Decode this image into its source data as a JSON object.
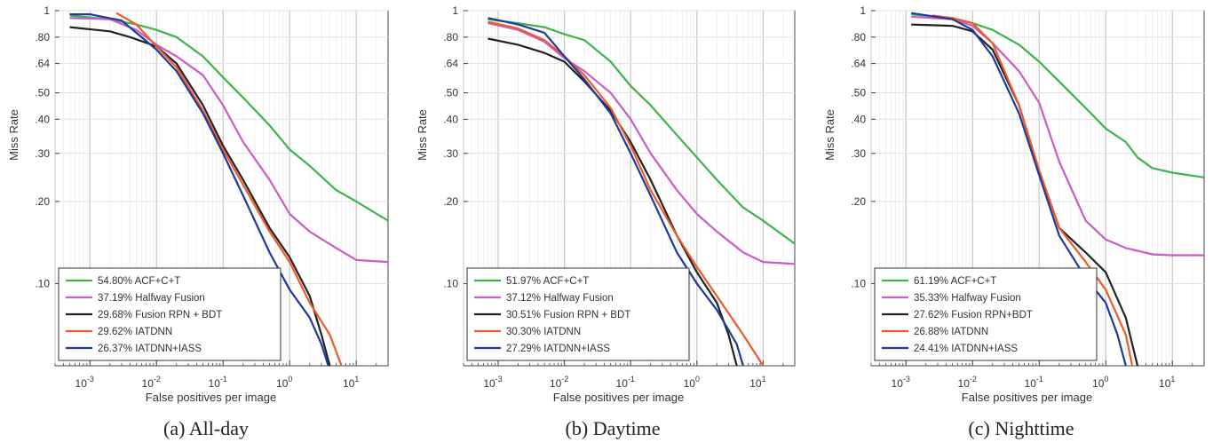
{
  "chart_data": [
    {
      "type": "line",
      "caption": "(a) All-day",
      "xlabel": "False positives per image",
      "ylabel": "Miss Rate",
      "x_scale": "log",
      "y_scale": "log",
      "xlim": [
        0.0003,
        30
      ],
      "ylim": [
        0.05,
        1
      ],
      "x_ticks": [
        {
          "v": 0.001,
          "b": "10",
          "e": "-3"
        },
        {
          "v": 0.01,
          "b": "10",
          "e": "-2"
        },
        {
          "v": 0.1,
          "b": "10",
          "e": "-1"
        },
        {
          "v": 1,
          "b": "10",
          "e": "0"
        },
        {
          "v": 10,
          "b": "10",
          "e": "1"
        }
      ],
      "y_ticks": [
        {
          "v": 1,
          "label": "1"
        },
        {
          "v": 0.8,
          "label": ".80"
        },
        {
          "v": 0.64,
          "label": ".64"
        },
        {
          "v": 0.5,
          "label": ".50"
        },
        {
          "v": 0.4,
          "label": ".40"
        },
        {
          "v": 0.3,
          "label": ".30"
        },
        {
          "v": 0.2,
          "label": ".20"
        },
        {
          "v": 0.1,
          "label": ".10"
        }
      ],
      "grid": true,
      "legend_position": "bottom-left",
      "series": [
        {
          "name": "54.80% ACF+C+T",
          "color": "#3cb44b",
          "points": [
            [
              0.0005,
              0.96
            ],
            [
              0.002,
              0.93
            ],
            [
              0.005,
              0.89
            ],
            [
              0.01,
              0.85
            ],
            [
              0.02,
              0.8
            ],
            [
              0.05,
              0.68
            ],
            [
              0.1,
              0.57
            ],
            [
              0.2,
              0.48
            ],
            [
              0.5,
              0.38
            ],
            [
              1,
              0.31
            ],
            [
              2,
              0.27
            ],
            [
              5,
              0.22
            ],
            [
              10,
              0.2
            ],
            [
              30,
              0.17
            ]
          ]
        },
        {
          "name": "37.19% Halfway Fusion",
          "color": "#cc5ac8",
          "points": [
            [
              0.0005,
              0.94
            ],
            [
              0.002,
              0.93
            ],
            [
              0.005,
              0.85
            ],
            [
              0.01,
              0.75
            ],
            [
              0.02,
              0.68
            ],
            [
              0.05,
              0.58
            ],
            [
              0.1,
              0.45
            ],
            [
              0.2,
              0.33
            ],
            [
              0.5,
              0.24
            ],
            [
              1,
              0.18
            ],
            [
              2,
              0.155
            ],
            [
              5,
              0.135
            ],
            [
              10,
              0.122
            ],
            [
              30,
              0.12
            ]
          ]
        },
        {
          "name": "29.68% Fusion RPN + BDT",
          "color": "#222222",
          "points": [
            [
              0.0005,
              0.87
            ],
            [
              0.002,
              0.84
            ],
            [
              0.004,
              0.8
            ],
            [
              0.01,
              0.74
            ],
            [
              0.02,
              0.64
            ],
            [
              0.05,
              0.45
            ],
            [
              0.1,
              0.32
            ],
            [
              0.2,
              0.24
            ],
            [
              0.5,
              0.16
            ],
            [
              1,
              0.125
            ],
            [
              2,
              0.09
            ],
            [
              3,
              0.065
            ],
            [
              4,
              0.05
            ]
          ]
        },
        {
          "name": "29.62% IATDNN",
          "color": "#f05a28",
          "points": [
            [
              0.0025,
              0.98
            ],
            [
              0.005,
              0.89
            ],
            [
              0.01,
              0.74
            ],
            [
              0.02,
              0.62
            ],
            [
              0.05,
              0.43
            ],
            [
              0.1,
              0.31
            ],
            [
              0.2,
              0.23
            ],
            [
              0.5,
              0.155
            ],
            [
              1,
              0.12
            ],
            [
              2,
              0.085
            ],
            [
              4,
              0.065
            ],
            [
              6,
              0.05
            ]
          ]
        },
        {
          "name": "26.37% IATDNN+IASS",
          "color": "#1e3a9a",
          "points": [
            [
              0.0005,
              0.97
            ],
            [
              0.001,
              0.97
            ],
            [
              0.003,
              0.92
            ],
            [
              0.01,
              0.72
            ],
            [
              0.02,
              0.6
            ],
            [
              0.05,
              0.42
            ],
            [
              0.1,
              0.3
            ],
            [
              0.2,
              0.21
            ],
            [
              0.5,
              0.13
            ],
            [
              1,
              0.095
            ],
            [
              2,
              0.075
            ],
            [
              3,
              0.06
            ],
            [
              3.8,
              0.05
            ]
          ]
        }
      ]
    },
    {
      "type": "line",
      "caption": "(b) Daytime",
      "xlabel": "False positives per image",
      "ylabel": "Miss Rate",
      "x_scale": "log",
      "y_scale": "log",
      "xlim": [
        0.0003,
        30
      ],
      "ylim": [
        0.05,
        1
      ],
      "x_ticks": [
        {
          "v": 0.001,
          "b": "10",
          "e": "-3"
        },
        {
          "v": 0.01,
          "b": "10",
          "e": "-2"
        },
        {
          "v": 0.1,
          "b": "10",
          "e": "-1"
        },
        {
          "v": 1,
          "b": "10",
          "e": "0"
        },
        {
          "v": 10,
          "b": "10",
          "e": "1"
        }
      ],
      "y_ticks": [
        {
          "v": 1,
          "label": "1"
        },
        {
          "v": 0.8,
          "label": ".80"
        },
        {
          "v": 0.64,
          "label": ".64"
        },
        {
          "v": 0.5,
          "label": ".50"
        },
        {
          "v": 0.4,
          "label": ".40"
        },
        {
          "v": 0.3,
          "label": ".30"
        },
        {
          "v": 0.2,
          "label": ".20"
        },
        {
          "v": 0.1,
          "label": ".10"
        }
      ],
      "grid": true,
      "legend_position": "bottom-left",
      "series": [
        {
          "name": "51.97% ACF+C+T",
          "color": "#3cb44b",
          "points": [
            [
              0.0007,
              0.93
            ],
            [
              0.002,
              0.9
            ],
            [
              0.005,
              0.87
            ],
            [
              0.01,
              0.82
            ],
            [
              0.02,
              0.78
            ],
            [
              0.05,
              0.65
            ],
            [
              0.1,
              0.53
            ],
            [
              0.2,
              0.45
            ],
            [
              0.5,
              0.35
            ],
            [
              1,
              0.29
            ],
            [
              2,
              0.24
            ],
            [
              5,
              0.19
            ],
            [
              10,
              0.17
            ],
            [
              30,
              0.14
            ]
          ]
        },
        {
          "name": "37.12% Halfway Fusion",
          "color": "#cc5ac8",
          "points": [
            [
              0.0007,
              0.9
            ],
            [
              0.002,
              0.85
            ],
            [
              0.005,
              0.77
            ],
            [
              0.01,
              0.67
            ],
            [
              0.02,
              0.6
            ],
            [
              0.05,
              0.5
            ],
            [
              0.1,
              0.4
            ],
            [
              0.2,
              0.3
            ],
            [
              0.5,
              0.22
            ],
            [
              1,
              0.18
            ],
            [
              2,
              0.155
            ],
            [
              5,
              0.13
            ],
            [
              10,
              0.12
            ],
            [
              30,
              0.118
            ]
          ]
        },
        {
          "name": "30.51% Fusion RPN + BDT",
          "color": "#222222",
          "points": [
            [
              0.0007,
              0.79
            ],
            [
              0.002,
              0.75
            ],
            [
              0.005,
              0.7
            ],
            [
              0.01,
              0.65
            ],
            [
              0.02,
              0.55
            ],
            [
              0.05,
              0.43
            ],
            [
              0.1,
              0.33
            ],
            [
              0.2,
              0.24
            ],
            [
              0.5,
              0.15
            ],
            [
              1,
              0.11
            ],
            [
              2,
              0.085
            ],
            [
              3,
              0.065
            ],
            [
              4,
              0.05
            ]
          ]
        },
        {
          "name": "30.30% IATDNN",
          "color": "#f05a28",
          "points": [
            [
              0.0007,
              0.91
            ],
            [
              0.002,
              0.86
            ],
            [
              0.005,
              0.78
            ],
            [
              0.01,
              0.68
            ],
            [
              0.02,
              0.58
            ],
            [
              0.05,
              0.44
            ],
            [
              0.1,
              0.32
            ],
            [
              0.2,
              0.22
            ],
            [
              0.5,
              0.15
            ],
            [
              1,
              0.115
            ],
            [
              2,
              0.09
            ],
            [
              5,
              0.065
            ],
            [
              10,
              0.05
            ]
          ]
        },
        {
          "name": "27.29% IATDNN+IASS",
          "color": "#1e3a9a",
          "points": [
            [
              0.0007,
              0.94
            ],
            [
              0.002,
              0.89
            ],
            [
              0.005,
              0.83
            ],
            [
              0.01,
              0.68
            ],
            [
              0.02,
              0.56
            ],
            [
              0.05,
              0.42
            ],
            [
              0.1,
              0.3
            ],
            [
              0.2,
              0.21
            ],
            [
              0.5,
              0.13
            ],
            [
              1,
              0.1
            ],
            [
              2,
              0.08
            ],
            [
              4,
              0.06
            ],
            [
              5,
              0.05
            ]
          ]
        }
      ]
    },
    {
      "type": "line",
      "caption": "(c) Nighttime",
      "xlabel": "False positives per image",
      "ylabel": "Miss Rate",
      "x_scale": "log",
      "y_scale": "log",
      "xlim": [
        0.0003,
        30
      ],
      "ylim": [
        0.05,
        1
      ],
      "x_ticks": [
        {
          "v": 0.001,
          "b": "10",
          "e": "-3"
        },
        {
          "v": 0.01,
          "b": "10",
          "e": "-2"
        },
        {
          "v": 0.1,
          "b": "10",
          "e": "-1"
        },
        {
          "v": 1,
          "b": "10",
          "e": "0"
        },
        {
          "v": 10,
          "b": "10",
          "e": "1"
        }
      ],
      "y_ticks": [
        {
          "v": 1,
          "label": "1"
        },
        {
          "v": 0.8,
          "label": ".80"
        },
        {
          "v": 0.64,
          "label": ".64"
        },
        {
          "v": 0.5,
          "label": ".50"
        },
        {
          "v": 0.4,
          "label": ".40"
        },
        {
          "v": 0.3,
          "label": ".30"
        },
        {
          "v": 0.2,
          "label": ".20"
        },
        {
          "v": 0.1,
          "label": ".10"
        }
      ],
      "grid": true,
      "legend_position": "bottom-left",
      "series": [
        {
          "name": "61.19% ACF+C+T",
          "color": "#3cb44b",
          "points": [
            [
              0.0012,
              0.97
            ],
            [
              0.005,
              0.94
            ],
            [
              0.01,
              0.9
            ],
            [
              0.02,
              0.85
            ],
            [
              0.05,
              0.75
            ],
            [
              0.1,
              0.65
            ],
            [
              0.2,
              0.55
            ],
            [
              0.5,
              0.44
            ],
            [
              1,
              0.37
            ],
            [
              2,
              0.33
            ],
            [
              3,
              0.29
            ],
            [
              5,
              0.265
            ],
            [
              10,
              0.255
            ],
            [
              30,
              0.245
            ]
          ]
        },
        {
          "name": "35.33% Halfway Fusion",
          "color": "#cc5ac8",
          "points": [
            [
              0.0012,
              0.95
            ],
            [
              0.005,
              0.93
            ],
            [
              0.01,
              0.88
            ],
            [
              0.02,
              0.76
            ],
            [
              0.05,
              0.6
            ],
            [
              0.1,
              0.46
            ],
            [
              0.2,
              0.28
            ],
            [
              0.5,
              0.17
            ],
            [
              1,
              0.145
            ],
            [
              2,
              0.135
            ],
            [
              5,
              0.128
            ],
            [
              10,
              0.127
            ],
            [
              30,
              0.127
            ]
          ]
        },
        {
          "name": "27.62% Fusion RPN+BDT",
          "color": "#222222",
          "points": [
            [
              0.0012,
              0.89
            ],
            [
              0.005,
              0.88
            ],
            [
              0.01,
              0.84
            ],
            [
              0.02,
              0.72
            ],
            [
              0.05,
              0.45
            ],
            [
              0.1,
              0.26
            ],
            [
              0.2,
              0.16
            ],
            [
              0.5,
              0.13
            ],
            [
              1,
              0.11
            ],
            [
              2,
              0.075
            ],
            [
              3,
              0.05
            ]
          ]
        },
        {
          "name": "26.88% IATDNN",
          "color": "#f05a28",
          "points": [
            [
              0.0025,
              0.96
            ],
            [
              0.005,
              0.94
            ],
            [
              0.01,
              0.9
            ],
            [
              0.02,
              0.76
            ],
            [
              0.05,
              0.45
            ],
            [
              0.1,
              0.26
            ],
            [
              0.2,
              0.16
            ],
            [
              0.5,
              0.12
            ],
            [
              1,
              0.095
            ],
            [
              2,
              0.065
            ],
            [
              2.5,
              0.05
            ]
          ]
        },
        {
          "name": "24.41% IATDNN+IASS",
          "color": "#1e3a9a",
          "points": [
            [
              0.0012,
              0.98
            ],
            [
              0.005,
              0.93
            ],
            [
              0.01,
              0.85
            ],
            [
              0.02,
              0.68
            ],
            [
              0.05,
              0.42
            ],
            [
              0.1,
              0.25
            ],
            [
              0.2,
              0.15
            ],
            [
              0.5,
              0.105
            ],
            [
              1,
              0.085
            ],
            [
              1.5,
              0.065
            ],
            [
              2,
              0.05
            ]
          ]
        }
      ]
    }
  ]
}
